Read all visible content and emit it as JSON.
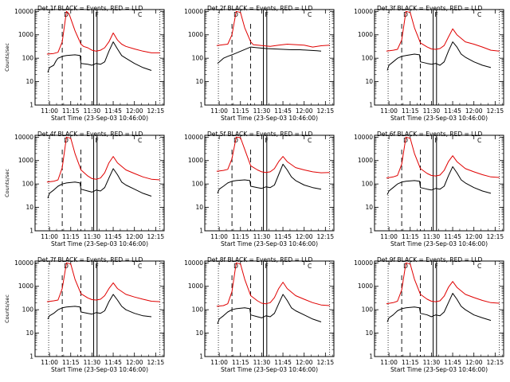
{
  "colors": {
    "events": "#000000",
    "lld": "#e00000",
    "frame": "#000000",
    "background": "#ffffff"
  },
  "chart_data": {
    "type": "line",
    "layout": "3x3 grid of detector panels",
    "shared_xaxis": {
      "tick_labels": [
        "11:00",
        "11:15",
        "11:30",
        "11:45",
        "12:00",
        "12:15"
      ],
      "tick_values_min": [
        11.0,
        11.25,
        11.5,
        11.75,
        12.0,
        12.25
      ],
      "xlim_min": [
        10.83,
        12.35
      ],
      "label": "Start Time (23-Sep-03 10:46:00)"
    },
    "shared_yaxis": {
      "scale": "log",
      "ylim": [
        1,
        12000
      ],
      "tick_labels": [
        "1",
        "10",
        "100",
        "1000",
        "10000"
      ],
      "label": "Counts/sec"
    },
    "series_legend": "BLACK = Events, RED = LLD",
    "panel_markers": {
      "dotted_at": [
        10.99,
        12.3
      ],
      "dashed_at": [
        11.15,
        11.37
      ],
      "solid_at": [
        11.52,
        11.56
      ],
      "letters": [
        "D",
        "F",
        "C"
      ]
    },
    "panels": [
      {
        "title": "Det 1f BLACK = Events, RED = LLD",
        "show_ylabel": true,
        "series": [
          {
            "color_key": "lld",
            "x": [
              10.97,
              11.05,
              11.1,
              11.15,
              11.2,
              11.23,
              11.3,
              11.37,
              11.4,
              11.45,
              11.5,
              11.55,
              11.6,
              11.65,
              11.7,
              11.75,
              11.8,
              11.85,
              11.9,
              12.0,
              12.1,
              12.2,
              12.3
            ],
            "y": [
              150,
              160,
              180,
              500,
              10000,
              8000,
              1500,
              400,
              320,
              280,
              220,
              200,
              220,
              280,
              500,
              1200,
              600,
              400,
              320,
              250,
              200,
              170,
              170
            ]
          },
          {
            "color_key": "events",
            "x": [
              10.98,
              11.0,
              11.05,
              11.08,
              11.1,
              11.13,
              11.15,
              11.2,
              11.3,
              11.36,
              11.37,
              11.45,
              11.5,
              11.55,
              11.6,
              11.65,
              11.7,
              11.75,
              11.8,
              11.85,
              11.9,
              12.0,
              12.1,
              12.2
            ],
            "y": [
              25,
              40,
              50,
              80,
              100,
              110,
              120,
              130,
              140,
              130,
              60,
              55,
              50,
              60,
              55,
              70,
              200,
              500,
              250,
              130,
              100,
              60,
              40,
              30
            ]
          }
        ]
      },
      {
        "title": "Det 2f BLACK = Events, RED = LLD",
        "show_ylabel": false,
        "series": [
          {
            "color_key": "lld",
            "x": [
              10.97,
              11.05,
              11.1,
              11.15,
              11.2,
              11.25,
              11.3,
              11.37,
              11.4,
              11.5,
              11.6,
              11.7,
              11.8,
              11.9,
              12.0,
              12.1,
              12.2,
              12.3
            ],
            "y": [
              350,
              380,
              400,
              1000,
              10000,
              9000,
              2000,
              500,
              380,
              350,
              320,
              360,
              400,
              380,
              360,
              300,
              340,
              360
            ]
          },
          {
            "color_key": "events",
            "x": [
              10.98,
              11.05,
              11.1,
              11.15,
              11.37,
              11.45,
              11.55,
              11.65,
              11.75,
              11.85,
              11.95,
              12.05,
              12.15,
              12.2
            ],
            "y": [
              60,
              100,
              120,
              140,
              300,
              280,
              260,
              250,
              240,
              230,
              230,
              220,
              210,
              200
            ]
          }
        ]
      },
      {
        "title": "Det 3f BLACK = Events, RED = LLD",
        "show_ylabel": false,
        "series": [
          {
            "color_key": "lld",
            "x": [
              10.97,
              11.05,
              11.1,
              11.15,
              11.2,
              11.25,
              11.3,
              11.37,
              11.45,
              11.5,
              11.55,
              11.6,
              11.65,
              11.7,
              11.75,
              11.8,
              11.9,
              12.0,
              12.1,
              12.2,
              12.3
            ],
            "y": [
              200,
              220,
              240,
              600,
              10000,
              9000,
              2000,
              450,
              300,
              250,
              240,
              260,
              350,
              800,
              1800,
              1000,
              500,
              400,
              300,
              220,
              200
            ]
          },
          {
            "color_key": "events",
            "x": [
              10.98,
              11.0,
              11.05,
              11.1,
              11.15,
              11.2,
              11.3,
              11.36,
              11.37,
              11.45,
              11.5,
              11.55,
              11.6,
              11.65,
              11.7,
              11.75,
              11.8,
              11.85,
              11.9,
              12.0,
              12.1,
              12.2
            ],
            "y": [
              30,
              50,
              70,
              100,
              120,
              130,
              150,
              140,
              70,
              60,
              55,
              60,
              50,
              70,
              200,
              500,
              300,
              150,
              110,
              70,
              50,
              40
            ]
          }
        ]
      },
      {
        "title": "Det 4f BLACK = Events, RED = LLD",
        "show_ylabel": true,
        "series": [
          {
            "color_key": "lld",
            "x": [
              10.97,
              11.05,
              11.1,
              11.15,
              11.2,
              11.25,
              11.3,
              11.37,
              11.45,
              11.5,
              11.55,
              11.6,
              11.65,
              11.7,
              11.75,
              11.8,
              11.9,
              12.0,
              12.1,
              12.2,
              12.3
            ],
            "y": [
              120,
              130,
              150,
              500,
              10000,
              9000,
              2000,
              400,
              220,
              170,
              160,
              180,
              300,
              800,
              1500,
              800,
              400,
              280,
              200,
              160,
              150
            ]
          },
          {
            "color_key": "events",
            "x": [
              10.98,
              11.0,
              11.05,
              11.1,
              11.15,
              11.2,
              11.3,
              11.36,
              11.37,
              11.45,
              11.5,
              11.55,
              11.6,
              11.65,
              11.7,
              11.75,
              11.8,
              11.85,
              11.9,
              12.0,
              12.1,
              12.2
            ],
            "y": [
              25,
              40,
              55,
              80,
              100,
              110,
              120,
              110,
              60,
              50,
              45,
              55,
              50,
              70,
              180,
              450,
              250,
              120,
              90,
              60,
              40,
              30
            ]
          }
        ]
      },
      {
        "title": "Det 5f BLACK = Events, RED = LLD",
        "show_ylabel": false,
        "series": [
          {
            "color_key": "lld",
            "x": [
              10.97,
              11.05,
              11.1,
              11.15,
              11.2,
              11.25,
              11.3,
              11.37,
              11.45,
              11.5,
              11.55,
              11.6,
              11.65,
              11.7,
              11.75,
              11.8,
              11.9,
              12.0,
              12.1,
              12.2,
              12.3
            ],
            "y": [
              350,
              380,
              420,
              1200,
              10000,
              9500,
              3000,
              600,
              400,
              330,
              310,
              330,
              450,
              900,
              1500,
              900,
              500,
              400,
              330,
              300,
              310
            ]
          },
          {
            "color_key": "events",
            "x": [
              10.98,
              11.0,
              11.05,
              11.1,
              11.15,
              11.2,
              11.3,
              11.36,
              11.37,
              11.45,
              11.5,
              11.55,
              11.6,
              11.65,
              11.7,
              11.75,
              11.8,
              11.85,
              11.9,
              12.0,
              12.1,
              12.2
            ],
            "y": [
              40,
              60,
              80,
              110,
              130,
              140,
              150,
              140,
              80,
              70,
              65,
              75,
              70,
              90,
              250,
              700,
              400,
              200,
              140,
              90,
              70,
              60
            ]
          }
        ]
      },
      {
        "title": "Det 6f BLACK = Events, RED = LLD",
        "show_ylabel": false,
        "series": [
          {
            "color_key": "lld",
            "x": [
              10.97,
              11.05,
              11.1,
              11.15,
              11.2,
              11.25,
              11.3,
              11.37,
              11.45,
              11.5,
              11.55,
              11.6,
              11.65,
              11.7,
              11.75,
              11.8,
              11.9,
              12.0,
              12.1,
              12.2,
              12.3
            ],
            "y": [
              180,
              200,
              230,
              700,
              10000,
              9000,
              2000,
              450,
              280,
              230,
              220,
              240,
              380,
              900,
              1600,
              900,
              450,
              330,
              250,
              200,
              190
            ]
          },
          {
            "color_key": "events",
            "x": [
              10.98,
              11.0,
              11.05,
              11.1,
              11.15,
              11.2,
              11.3,
              11.36,
              11.37,
              11.45,
              11.5,
              11.55,
              11.6,
              11.65,
              11.7,
              11.75,
              11.8,
              11.85,
              11.9,
              12.0,
              12.1,
              12.2
            ],
            "y": [
              35,
              50,
              70,
              100,
              120,
              130,
              140,
              130,
              70,
              60,
              55,
              65,
              60,
              80,
              220,
              550,
              300,
              150,
              110,
              70,
              50,
              40
            ]
          }
        ]
      },
      {
        "title": "Det 7f BLACK = Events, RED = LLD",
        "show_ylabel": true,
        "series": [
          {
            "color_key": "lld",
            "x": [
              10.97,
              11.05,
              11.1,
              11.15,
              11.2,
              11.25,
              11.3,
              11.37,
              11.45,
              11.5,
              11.55,
              11.6,
              11.65,
              11.7,
              11.75,
              11.8,
              11.9,
              12.0,
              12.1,
              12.2,
              12.3
            ],
            "y": [
              220,
              240,
              260,
              800,
              10000,
              9000,
              2000,
              480,
              320,
              270,
              260,
              280,
              400,
              800,
              1400,
              800,
              450,
              350,
              280,
              230,
              220
            ]
          },
          {
            "color_key": "events",
            "x": [
              10.98,
              11.0,
              11.05,
              11.1,
              11.15,
              11.2,
              11.3,
              11.36,
              11.37,
              11.45,
              11.5,
              11.55,
              11.6,
              11.65,
              11.7,
              11.75,
              11.8,
              11.85,
              11.9,
              12.0,
              12.1,
              12.2
            ],
            "y": [
              40,
              55,
              70,
              100,
              120,
              130,
              140,
              130,
              80,
              70,
              65,
              75,
              70,
              90,
              220,
              450,
              260,
              140,
              100,
              70,
              55,
              50
            ]
          }
        ]
      },
      {
        "title": "Det 8f BLACK = Events, RED = LLD",
        "show_ylabel": false,
        "series": [
          {
            "color_key": "lld",
            "x": [
              10.97,
              11.05,
              11.1,
              11.15,
              11.2,
              11.25,
              11.3,
              11.37,
              11.45,
              11.5,
              11.55,
              11.6,
              11.65,
              11.7,
              11.75,
              11.8,
              11.9,
              12.0,
              12.1,
              12.2,
              12.3
            ],
            "y": [
              140,
              150,
              180,
              600,
              10000,
              9000,
              2000,
              400,
              240,
              190,
              180,
              200,
              330,
              800,
              1500,
              800,
              400,
              280,
              200,
              160,
              150
            ]
          },
          {
            "color_key": "events",
            "x": [
              10.98,
              11.0,
              11.05,
              11.1,
              11.15,
              11.2,
              11.3,
              11.36,
              11.37,
              11.45,
              11.5,
              11.55,
              11.6,
              11.65,
              11.7,
              11.75,
              11.8,
              11.85,
              11.9,
              12.0,
              12.1,
              12.2
            ],
            "y": [
              25,
              40,
              55,
              80,
              100,
              110,
              120,
              110,
              60,
              50,
              45,
              55,
              50,
              70,
              180,
              450,
              250,
              120,
              90,
              60,
              40,
              30
            ]
          }
        ]
      },
      {
        "title": "Det 9f BLACK = Events, RED = LLD",
        "show_ylabel": false,
        "series": [
          {
            "color_key": "lld",
            "x": [
              10.97,
              11.05,
              11.1,
              11.15,
              11.2,
              11.25,
              11.3,
              11.37,
              11.45,
              11.5,
              11.55,
              11.6,
              11.65,
              11.7,
              11.75,
              11.8,
              11.9,
              12.0,
              12.1,
              12.2,
              12.3
            ],
            "y": [
              180,
              200,
              230,
              700,
              10000,
              9000,
              2000,
              450,
              280,
              230,
              220,
              240,
              380,
              900,
              1600,
              900,
              450,
              330,
              250,
              200,
              190
            ]
          },
          {
            "color_key": "events",
            "x": [
              10.98,
              11.0,
              11.05,
              11.1,
              11.15,
              11.2,
              11.3,
              11.36,
              11.37,
              11.45,
              11.5,
              11.55,
              11.6,
              11.65,
              11.7,
              11.75,
              11.8,
              11.85,
              11.9,
              12.0,
              12.1,
              12.2
            ],
            "y": [
              30,
              45,
              60,
              90,
              110,
              120,
              130,
              120,
              70,
              60,
              50,
              60,
              55,
              80,
              200,
              500,
              280,
              140,
              100,
              60,
              45,
              35
            ]
          }
        ]
      }
    ]
  }
}
